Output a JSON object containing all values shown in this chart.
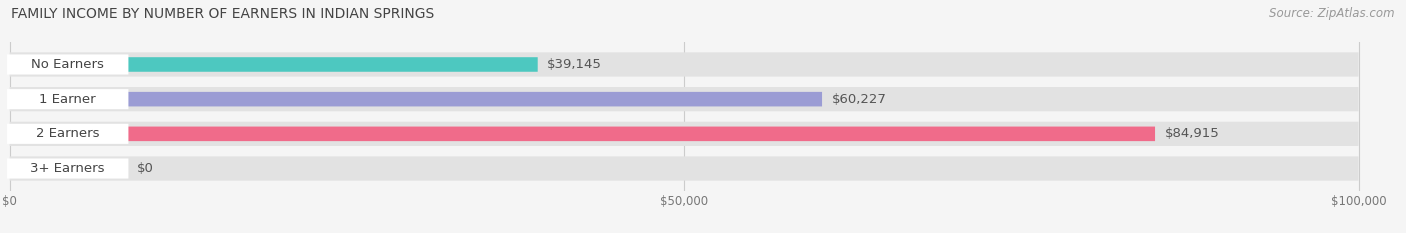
{
  "title": "FAMILY INCOME BY NUMBER OF EARNERS IN INDIAN SPRINGS",
  "source": "Source: ZipAtlas.com",
  "categories": [
    "No Earners",
    "1 Earner",
    "2 Earners",
    "3+ Earners"
  ],
  "values": [
    39145,
    60227,
    84915,
    0
  ],
  "bar_colors": [
    "#4dc8c0",
    "#9b9cd4",
    "#f06b8a",
    "#f5c99a"
  ],
  "xlim": [
    0,
    100000
  ],
  "xticks": [
    0,
    50000,
    100000
  ],
  "xtick_labels": [
    "$0",
    "$50,000",
    "$100,000"
  ],
  "value_labels": [
    "$39,145",
    "$60,227",
    "$84,915",
    "$0"
  ],
  "title_fontsize": 10,
  "source_fontsize": 8.5,
  "label_fontsize": 9.5,
  "value_fontsize": 9.5,
  "background_color": "#f5f5f5",
  "bar_bg_color": "#e2e2e2",
  "label_box_color": "#ffffff"
}
